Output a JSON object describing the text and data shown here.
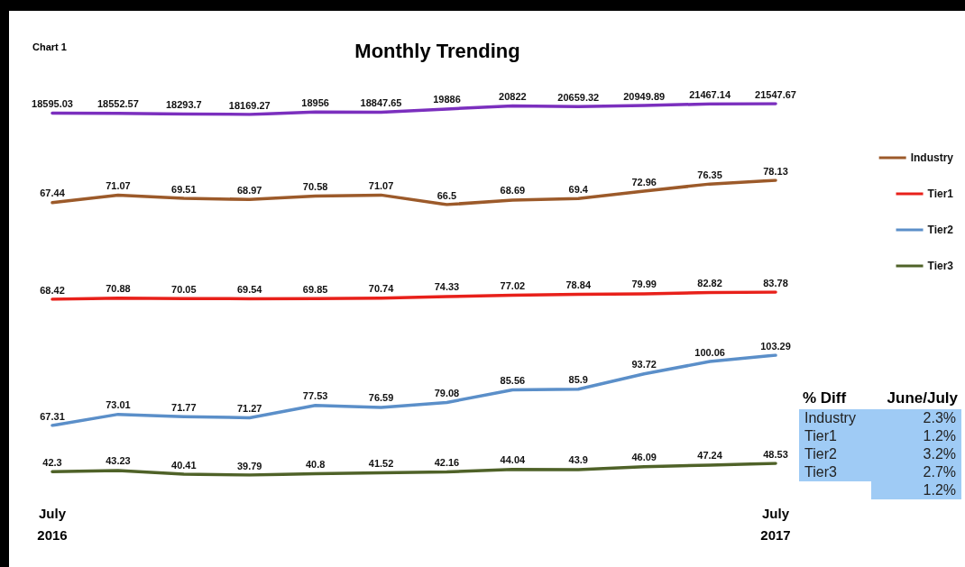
{
  "chart_data": [
    {
      "type": "line",
      "title": "Monthly Trending",
      "annotations": [
        "Chart 1"
      ],
      "categories": [
        null,
        null,
        null,
        null,
        null,
        null,
        null,
        null,
        null,
        null,
        null,
        null
      ],
      "series": [
        {
          "color": "#7b2fbe",
          "values": [
            18595.03,
            18552.57,
            18293.7,
            18169.27,
            18956,
            18847.65,
            19886,
            20822,
            20659.32,
            20949.89,
            21467.14,
            21547.67
          ]
        }
      ],
      "tick_labels": false,
      "grid": false,
      "marker": "none",
      "line_style": "solid",
      "data_labels": true
    },
    {
      "type": "line",
      "categories": [
        null,
        null,
        null,
        null,
        null,
        null,
        null,
        null,
        null,
        null,
        null,
        null
      ],
      "series": [
        {
          "name": "Industry",
          "color": "#9c5a2a",
          "values": [
            67.44,
            71.07,
            69.51,
            68.97,
            70.58,
            71.07,
            66.5,
            68.69,
            69.4,
            72.96,
            76.35,
            78.13
          ]
        }
      ],
      "tick_labels": false,
      "grid": false,
      "legend": "right",
      "marker": "none",
      "line_style": "solid",
      "data_labels": true
    },
    {
      "type": "line",
      "categories": [
        null,
        null,
        null,
        null,
        null,
        null,
        null,
        null,
        null,
        null,
        null,
        null
      ],
      "series": [
        {
          "name": "Tier1",
          "color": "#e8201a",
          "values": [
            68.42,
            70.88,
            70.05,
            69.54,
            69.85,
            70.74,
            74.33,
            77.02,
            78.84,
            79.99,
            82.82,
            83.78
          ]
        }
      ],
      "tick_labels": false,
      "grid": false,
      "legend": "right",
      "marker": "none",
      "line_style": "solid",
      "data_labels": true
    },
    {
      "type": "line",
      "categories": [
        null,
        null,
        null,
        null,
        null,
        null,
        null,
        null,
        null,
        null,
        null,
        null
      ],
      "series": [
        {
          "name": "Tier2",
          "color": "#5b8fc9",
          "values": [
            67.31,
            73.01,
            71.77,
            71.27,
            77.53,
            76.59,
            79.08,
            85.56,
            85.9,
            93.72,
            100.06,
            103.29
          ]
        }
      ],
      "tick_labels": false,
      "grid": false,
      "legend": "right",
      "marker": "none",
      "line_style": "solid",
      "data_labels": true
    },
    {
      "type": "line",
      "categories": [
        "July 2016",
        null,
        null,
        null,
        null,
        null,
        null,
        null,
        null,
        null,
        null,
        "July 2017"
      ],
      "series": [
        {
          "name": "Tier3",
          "color": "#4f6228",
          "values": [
            42.3,
            43.23,
            40.41,
            39.79,
            40.8,
            41.52,
            42.16,
            44.04,
            43.9,
            46.09,
            47.24,
            48.53
          ]
        }
      ],
      "tick_labels": "x",
      "grid": false,
      "legend": "right",
      "marker": "none",
      "line_style": "solid",
      "data_labels": true
    },
    {
      "type": "other",
      "title": "% Diff",
      "subtitle": "June/July",
      "categories": [
        "Industry",
        "Tier1",
        "Tier2",
        "Tier3",
        null
      ],
      "value_labels": [
        "2.3%",
        "1.2%",
        "3.2%",
        "2.7%",
        "1.2%"
      ]
    }
  ]
}
